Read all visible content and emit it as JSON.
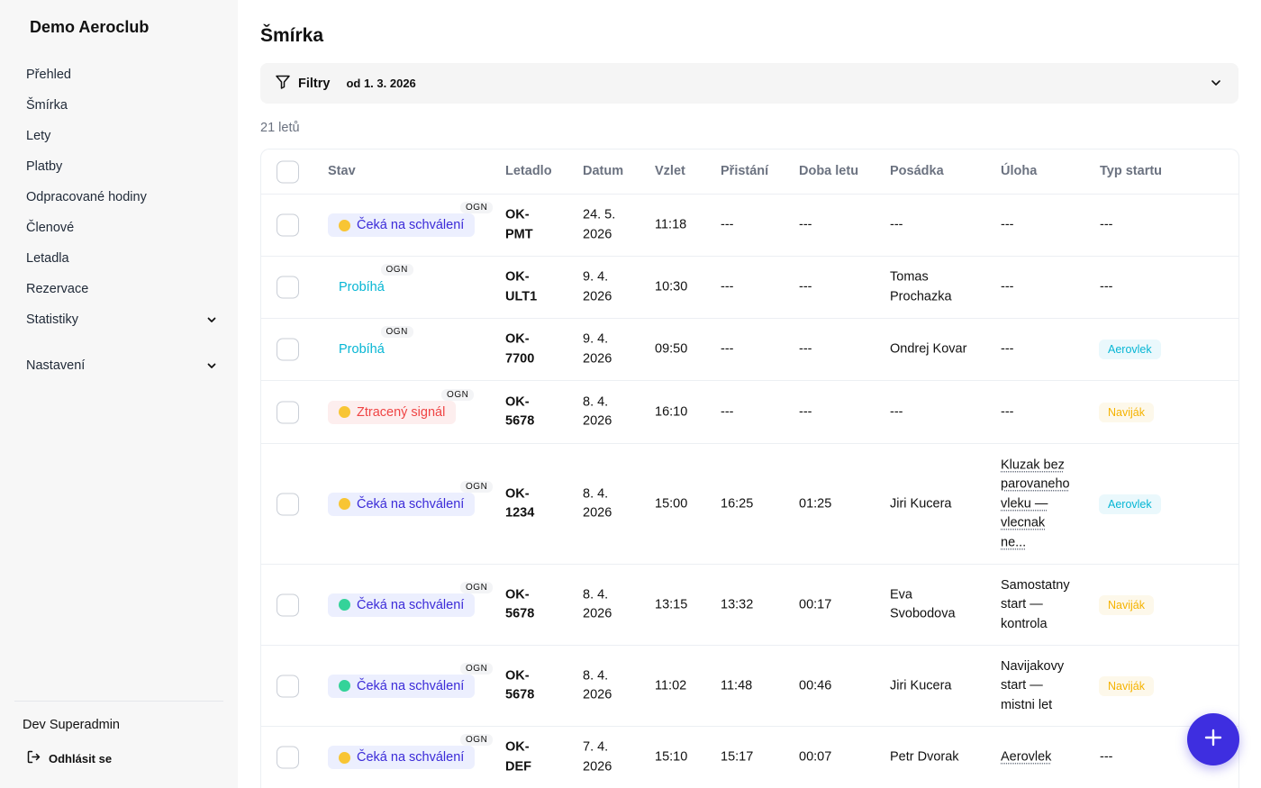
{
  "sidebar": {
    "brand": "Demo Aeroclub",
    "items": [
      {
        "label": "Přehled"
      },
      {
        "label": "Šmírka"
      },
      {
        "label": "Lety"
      },
      {
        "label": "Platby"
      },
      {
        "label": "Odpracované hodiny"
      },
      {
        "label": "Členové"
      },
      {
        "label": "Letadla"
      },
      {
        "label": "Rezervace"
      },
      {
        "label": "Statistiky"
      },
      {
        "label": "Nastavení"
      }
    ],
    "user": "Dev Superadmin",
    "logout": "Odhlásit se"
  },
  "page": {
    "title": "Šmírka",
    "filter_label": "Filtry",
    "filter_value": "od 1. 3. 2026",
    "count": "21 letů"
  },
  "table": {
    "headers": [
      "Stav",
      "Letadlo",
      "Datum",
      "Vzlet",
      "Přistání",
      "Doba letu",
      "Posádka",
      "Úloha",
      "Typ startu"
    ],
    "rows": [
      {
        "status": "Čeká na schválení",
        "ogn": "OGN",
        "aircraft_1": "OK-",
        "aircraft_2": "PMT",
        "date_1": "24. 5.",
        "date_2": "2026",
        "takeoff": "11:18",
        "landing": "---",
        "duration": "---",
        "crew_1": "---",
        "task_1": "---",
        "launch": "---"
      },
      {
        "status": "Probíhá",
        "ogn": "OGN",
        "aircraft_1": "OK-",
        "aircraft_2": "ULT1",
        "date_1": "9. 4.",
        "date_2": "2026",
        "takeoff": "10:30",
        "landing": "---",
        "duration": "---",
        "crew_1": "Tomas",
        "crew_2": "Prochazka",
        "task_1": "---",
        "launch": "---"
      },
      {
        "status": "Probíhá",
        "ogn": "OGN",
        "aircraft_1": "OK-",
        "aircraft_2": "7700",
        "date_1": "9. 4.",
        "date_2": "2026",
        "takeoff": "09:50",
        "landing": "---",
        "duration": "---",
        "crew_1": "Ondrej Kovar",
        "task_1": "---",
        "launch": "Aerovlek"
      },
      {
        "status": "Ztracený signál",
        "ogn": "OGN",
        "aircraft_1": "OK-",
        "aircraft_2": "5678",
        "date_1": "8. 4.",
        "date_2": "2026",
        "takeoff": "16:10",
        "landing": "---",
        "duration": "---",
        "crew_1": "---",
        "task_1": "---",
        "launch": "Naviják"
      },
      {
        "status": "Čeká na schválení",
        "ogn": "OGN",
        "aircraft_1": "OK-",
        "aircraft_2": "1234",
        "date_1": "8. 4.",
        "date_2": "2026",
        "takeoff": "15:00",
        "landing": "16:25",
        "duration": "01:25",
        "crew_1": "Jiri Kucera",
        "task_1": "Kluzak bez",
        "task_2": "parovaneho",
        "task_3": "vleku —",
        "task_4": "vlecnak",
        "task_5": "ne...",
        "launch": "Aerovlek"
      },
      {
        "status": "Čeká na schválení",
        "ogn": "OGN",
        "aircraft_1": "OK-",
        "aircraft_2": "5678",
        "date_1": "8. 4.",
        "date_2": "2026",
        "takeoff": "13:15",
        "landing": "13:32",
        "duration": "00:17",
        "crew_1": "Eva",
        "crew_2": "Svobodova",
        "task_1": "Samostatny",
        "task_2": "start —",
        "task_3": "kontrola",
        "launch": "Naviják"
      },
      {
        "status": "Čeká na schválení",
        "ogn": "OGN",
        "aircraft_1": "OK-",
        "aircraft_2": "5678",
        "date_1": "8. 4.",
        "date_2": "2026",
        "takeoff": "11:02",
        "landing": "11:48",
        "duration": "00:46",
        "crew_1": "Jiri Kucera",
        "task_1": "Navijakovy",
        "task_2": "start —",
        "task_3": "mistni let",
        "launch": "Naviják"
      },
      {
        "status": "Čeká na schválení",
        "ogn": "OGN",
        "aircraft_1": "OK-",
        "aircraft_2": "DEF",
        "date_1": "7. 4.",
        "date_2": "2026",
        "takeoff": "15:10",
        "landing": "15:17",
        "duration": "00:07",
        "crew_1": "Petr Dvorak",
        "task_1": "Aerovlek",
        "launch": "---"
      }
    ]
  },
  "colors": {
    "accent": "#3e2ee0",
    "pending_dot_yellow": "#f8c534",
    "pending_dot_green": "#34d399",
    "running": "#06b6d4",
    "lost": "#ef4444"
  },
  "icons": {
    "filter": "filter-icon",
    "chevron": "chevron-down-icon",
    "logout": "logout-icon",
    "add": "plus-icon"
  }
}
